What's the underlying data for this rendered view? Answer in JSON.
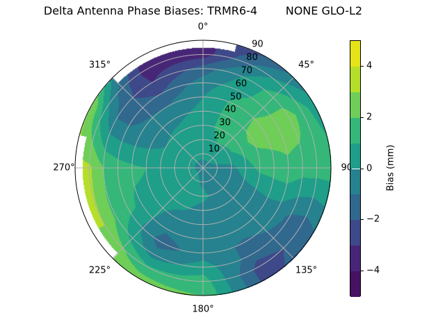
{
  "chart_data": {
    "type": "heatmap",
    "subtype": "polar-contour",
    "title": "Delta Antenna Phase Biases: TRMR6-4        NONE GLO-L2",
    "angular_axis": {
      "zero_location": "N",
      "direction": "clockwise",
      "tick_labels": [
        "0°",
        "45°",
        "90°",
        "135°",
        "180°",
        "225°",
        "270°",
        "315°"
      ]
    },
    "radial_axis": {
      "label": "",
      "range": [
        0,
        90
      ],
      "tick_labels": [
        "10",
        "20",
        "30",
        "40",
        "50",
        "60",
        "70",
        "80",
        "90"
      ]
    },
    "grid": true,
    "colormap": "viridis",
    "levels": [
      -5,
      -4,
      -3,
      -2,
      -1,
      0,
      1,
      2,
      3,
      4,
      5
    ],
    "colors": [
      "#471164",
      "#482677",
      "#3e4989",
      "#31688e",
      "#26828e",
      "#1f9e89",
      "#35b779",
      "#6ece58",
      "#b5de2b",
      "#e5e419"
    ],
    "colorbar": {
      "label": "Bias (mm)",
      "tick_values": [
        -4,
        -2,
        0,
        2,
        4
      ],
      "tick_labels": [
        "−4",
        "−2",
        "0",
        "2",
        "4"
      ],
      "range": [
        -5,
        5
      ]
    },
    "azimuth_deg": [
      0,
      30,
      60,
      90,
      120,
      150,
      180,
      210,
      240,
      270,
      300,
      330
    ],
    "zenith_deg": [
      0,
      10,
      20,
      30,
      40,
      50,
      60,
      70,
      80,
      90
    ],
    "values_mm": [
      [
        -0.5,
        -0.5,
        -0.5,
        -0.5,
        -0.5,
        -0.5,
        -0.5,
        -0.5,
        -0.5,
        -0.5,
        -0.5,
        -0.5
      ],
      [
        0.3,
        0.5,
        0.3,
        -0.3,
        -0.5,
        -0.5,
        -0.3,
        0.3,
        0.5,
        0.3,
        0.3,
        0.3
      ],
      [
        0.5,
        1.0,
        0.8,
        -0.3,
        -0.5,
        -0.5,
        0.3,
        0.5,
        0.5,
        0.5,
        0.3,
        0.3
      ],
      [
        0.5,
        1.5,
        1.5,
        0.5,
        -0.5,
        -0.5,
        -0.5,
        0.3,
        0.8,
        0.8,
        0.0,
        0.3
      ],
      [
        0.3,
        1.5,
        2.3,
        1.3,
        -0.5,
        -0.5,
        -0.5,
        -0.5,
        0.8,
        1.0,
        -0.5,
        -0.3
      ],
      [
        0.0,
        1.5,
        2.5,
        1.5,
        -0.3,
        -0.5,
        -0.5,
        -0.8,
        0.8,
        1.2,
        -0.8,
        -1.0
      ],
      [
        -0.5,
        0.8,
        2.5,
        1.8,
        -0.5,
        -1.2,
        -0.5,
        -1.5,
        1.2,
        1.5,
        -1.0,
        -2.0
      ],
      [
        -1.5,
        0.5,
        2.5,
        1.5,
        -1.2,
        -1.5,
        0.5,
        -0.5,
        1.8,
        2.0,
        -1.0,
        -3.0
      ],
      [
        -3.5,
        -0.5,
        1.5,
        1.5,
        -1.5,
        -2.5,
        1.5,
        1.2,
        3.0,
        3.2,
        0.5,
        -3.5
      ],
      [
        null,
        -2.0,
        0.5,
        1.5,
        -1.0,
        -2.5,
        2.0,
        2.5,
        null,
        null,
        3.0,
        null
      ]
    ]
  }
}
